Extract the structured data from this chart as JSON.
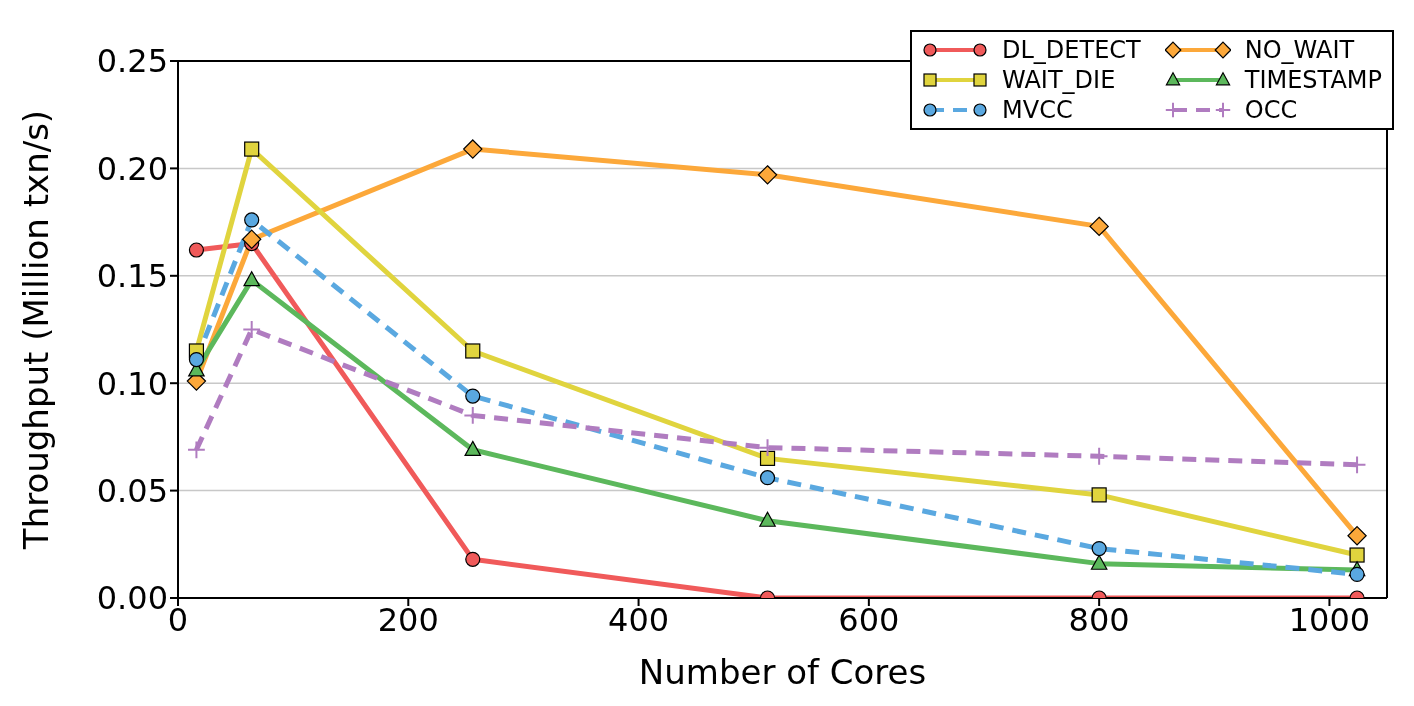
{
  "chart_data": {
    "type": "line",
    "xlabel": "Number of Cores",
    "ylabel": "Throughput (Million txn/s)",
    "x": [
      16,
      64,
      256,
      512,
      800,
      1024
    ],
    "xlim": [
      0,
      1050
    ],
    "xticks": [
      0,
      200,
      400,
      600,
      800,
      1000
    ],
    "ylim": [
      0,
      0.25
    ],
    "yticks": [
      {
        "value": 0,
        "label": "0.00"
      },
      {
        "value": 0.05,
        "label": "0.05"
      },
      {
        "value": 0.1,
        "label": "0.10"
      },
      {
        "value": 0.15,
        "label": "0.15"
      },
      {
        "value": 0.2,
        "label": "0.20"
      },
      {
        "value": 0.25,
        "label": "0.25"
      }
    ],
    "grid": "y",
    "legend": "top right",
    "series": [
      {
        "name": "DL_DETECT",
        "color": "#f05a5a",
        "marker": "circle",
        "line_style": "solid",
        "values": [
          0.162,
          0.165,
          0.018,
          0,
          0,
          0
        ]
      },
      {
        "name": "NO_WAIT",
        "color": "#fca83a",
        "marker": "diamond",
        "line_style": "solid",
        "values": [
          0.101,
          0.167,
          0.209,
          0.197,
          0.173,
          0.029
        ]
      },
      {
        "name": "WAIT_DIE",
        "color": "#e0d43e",
        "marker": "square",
        "line_style": "solid",
        "values": [
          0.115,
          0.209,
          0.115,
          0.065,
          0.048,
          0.02
        ]
      },
      {
        "name": "TIMESTAMP",
        "color": "#5cb85c",
        "marker": "triangle",
        "line_style": "solid",
        "values": [
          0.106,
          0.148,
          0.069,
          0.036,
          0.016,
          0.013
        ]
      },
      {
        "name": "MVCC",
        "color": "#5aa8e0",
        "marker": "circle",
        "line_style": "dashed",
        "values": [
          0.111,
          0.176,
          0.094,
          0.056,
          0.023,
          0.011
        ]
      },
      {
        "name": "OCC",
        "color": "#b07cc0",
        "marker": "cross",
        "line_style": "dashed",
        "values": [
          0.069,
          0.125,
          0.085,
          0.07,
          0.066,
          0.062
        ]
      }
    ]
  }
}
